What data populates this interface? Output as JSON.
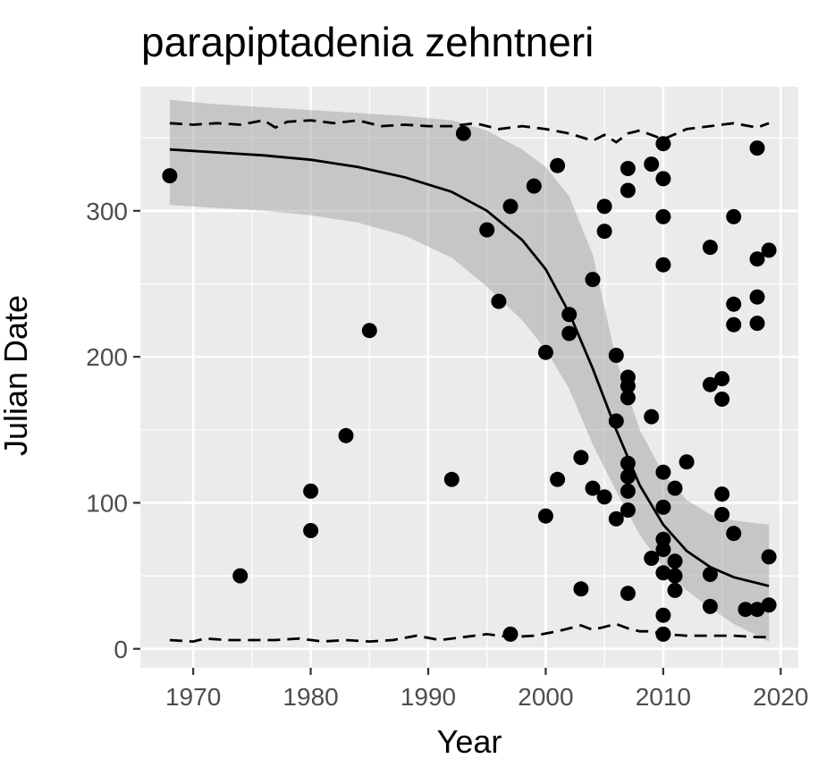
{
  "chart_data": {
    "type": "scatter",
    "title": "parapiptadenia zehntneri",
    "xlabel": "Year",
    "ylabel": "Julian Date",
    "xlim": [
      1965.5,
      2021.5
    ],
    "ylim": [
      -13,
      385
    ],
    "x_ticks": [
      1970,
      1980,
      1990,
      2000,
      2010,
      2020
    ],
    "y_ticks": [
      0,
      100,
      200,
      300
    ],
    "x_tick_labels": [
      "1970",
      "1980",
      "1990",
      "2000",
      "2010",
      "2020"
    ],
    "y_tick_labels": [
      "0",
      "100",
      "200",
      "300"
    ],
    "grid": true,
    "background": "#ebebeb",
    "points": [
      [
        1968,
        324
      ],
      [
        1974,
        50
      ],
      [
        1980,
        108
      ],
      [
        1980,
        81
      ],
      [
        1983,
        146
      ],
      [
        1985,
        218
      ],
      [
        1992,
        116
      ],
      [
        1993,
        353
      ],
      [
        1995,
        287
      ],
      [
        1996,
        238
      ],
      [
        1997,
        303
      ],
      [
        1997,
        10
      ],
      [
        1999,
        317
      ],
      [
        2000,
        203
      ],
      [
        2000,
        91
      ],
      [
        2001,
        331
      ],
      [
        2001,
        116
      ],
      [
        2002,
        229
      ],
      [
        2002,
        216
      ],
      [
        2003,
        131
      ],
      [
        2003,
        41
      ],
      [
        2004,
        253
      ],
      [
        2004,
        110
      ],
      [
        2005,
        303
      ],
      [
        2005,
        286
      ],
      [
        2005,
        104
      ],
      [
        2006,
        201
      ],
      [
        2006,
        156
      ],
      [
        2006,
        89
      ],
      [
        2007,
        329
      ],
      [
        2007,
        314
      ],
      [
        2007,
        186
      ],
      [
        2007,
        180
      ],
      [
        2007,
        172
      ],
      [
        2007,
        127
      ],
      [
        2007,
        118
      ],
      [
        2007,
        108
      ],
      [
        2007,
        95
      ],
      [
        2007,
        38
      ],
      [
        2009,
        332
      ],
      [
        2009,
        159
      ],
      [
        2009,
        62
      ],
      [
        2010,
        346
      ],
      [
        2010,
        322
      ],
      [
        2010,
        296
      ],
      [
        2010,
        263
      ],
      [
        2010,
        121
      ],
      [
        2010,
        97
      ],
      [
        2010,
        75
      ],
      [
        2010,
        68
      ],
      [
        2010,
        52
      ],
      [
        2010,
        23
      ],
      [
        2010,
        10
      ],
      [
        2011,
        110
      ],
      [
        2011,
        60
      ],
      [
        2011,
        50
      ],
      [
        2011,
        40
      ],
      [
        2012,
        128
      ],
      [
        2014,
        275
      ],
      [
        2014,
        181
      ],
      [
        2014,
        51
      ],
      [
        2014,
        29
      ],
      [
        2015,
        185
      ],
      [
        2015,
        171
      ],
      [
        2015,
        106
      ],
      [
        2015,
        92
      ],
      [
        2016,
        296
      ],
      [
        2016,
        236
      ],
      [
        2016,
        222
      ],
      [
        2016,
        79
      ],
      [
        2017,
        27
      ],
      [
        2018,
        343
      ],
      [
        2018,
        267
      ],
      [
        2018,
        241
      ],
      [
        2018,
        223
      ],
      [
        2018,
        27
      ],
      [
        2019,
        273
      ],
      [
        2019,
        63
      ],
      [
        2019,
        30
      ]
    ],
    "fit_line": [
      [
        1968,
        342
      ],
      [
        1972,
        340
      ],
      [
        1976,
        338
      ],
      [
        1980,
        335
      ],
      [
        1984,
        330
      ],
      [
        1988,
        323
      ],
      [
        1992,
        313
      ],
      [
        1995,
        300
      ],
      [
        1998,
        280
      ],
      [
        2000,
        260
      ],
      [
        2002,
        230
      ],
      [
        2004,
        192
      ],
      [
        2006,
        150
      ],
      [
        2008,
        112
      ],
      [
        2010,
        85
      ],
      [
        2012,
        67
      ],
      [
        2014,
        56
      ],
      [
        2016,
        49
      ],
      [
        2019,
        43
      ]
    ],
    "confidence_band_upper": [
      [
        1968,
        376
      ],
      [
        1972,
        373
      ],
      [
        1976,
        371
      ],
      [
        1980,
        369
      ],
      [
        1984,
        367
      ],
      [
        1988,
        365
      ],
      [
        1992,
        362
      ],
      [
        1995,
        355
      ],
      [
        1998,
        342
      ],
      [
        2000,
        330
      ],
      [
        2002,
        310
      ],
      [
        2004,
        270
      ],
      [
        2006,
        198
      ],
      [
        2008,
        150
      ],
      [
        2010,
        120
      ],
      [
        2012,
        102
      ],
      [
        2014,
        92
      ],
      [
        2016,
        88
      ],
      [
        2019,
        85
      ]
    ],
    "confidence_band_lower": [
      [
        1968,
        304
      ],
      [
        1972,
        302
      ],
      [
        1976,
        300
      ],
      [
        1980,
        297
      ],
      [
        1984,
        292
      ],
      [
        1988,
        283
      ],
      [
        1992,
        268
      ],
      [
        1995,
        248
      ],
      [
        1998,
        225
      ],
      [
        2000,
        205
      ],
      [
        2002,
        178
      ],
      [
        2004,
        140
      ],
      [
        2006,
        108
      ],
      [
        2008,
        78
      ],
      [
        2010,
        56
      ],
      [
        2012,
        40
      ],
      [
        2014,
        28
      ],
      [
        2016,
        17
      ],
      [
        2019,
        5
      ]
    ],
    "upper_dashed": [
      [
        1968,
        360
      ],
      [
        1970,
        359
      ],
      [
        1972,
        360
      ],
      [
        1974,
        359
      ],
      [
        1976,
        362
      ],
      [
        1977,
        357
      ],
      [
        1978,
        361
      ],
      [
        1980,
        362
      ],
      [
        1982,
        360
      ],
      [
        1984,
        362
      ],
      [
        1986,
        358
      ],
      [
        1988,
        359
      ],
      [
        1990,
        358
      ],
      [
        1992,
        358
      ],
      [
        1994,
        360
      ],
      [
        1996,
        356
      ],
      [
        1998,
        358
      ],
      [
        2000,
        356
      ],
      [
        2002,
        353
      ],
      [
        2004,
        348
      ],
      [
        2005,
        352
      ],
      [
        2006,
        347
      ],
      [
        2007,
        353
      ],
      [
        2008,
        355
      ],
      [
        2009,
        352
      ],
      [
        2010,
        349
      ],
      [
        2012,
        356
      ],
      [
        2014,
        358
      ],
      [
        2016,
        360
      ],
      [
        2018,
        357
      ],
      [
        2019,
        360
      ]
    ],
    "lower_dashed": [
      [
        1968,
        6
      ],
      [
        1970,
        5
      ],
      [
        1971,
        7
      ],
      [
        1973,
        6
      ],
      [
        1975,
        6
      ],
      [
        1977,
        6
      ],
      [
        1979,
        7
      ],
      [
        1981,
        5
      ],
      [
        1983,
        6
      ],
      [
        1985,
        5
      ],
      [
        1987,
        6
      ],
      [
        1989,
        9
      ],
      [
        1991,
        6
      ],
      [
        1993,
        8
      ],
      [
        1995,
        10
      ],
      [
        1997,
        8
      ],
      [
        1999,
        9
      ],
      [
        2001,
        12
      ],
      [
        2002,
        14
      ],
      [
        2003,
        16
      ],
      [
        2004,
        13
      ],
      [
        2005,
        15
      ],
      [
        2006,
        17
      ],
      [
        2007,
        14
      ],
      [
        2008,
        12
      ],
      [
        2009,
        12
      ],
      [
        2010,
        10
      ],
      [
        2012,
        9
      ],
      [
        2014,
        9
      ],
      [
        2016,
        9
      ],
      [
        2018,
        8
      ],
      [
        2019,
        8
      ]
    ]
  }
}
